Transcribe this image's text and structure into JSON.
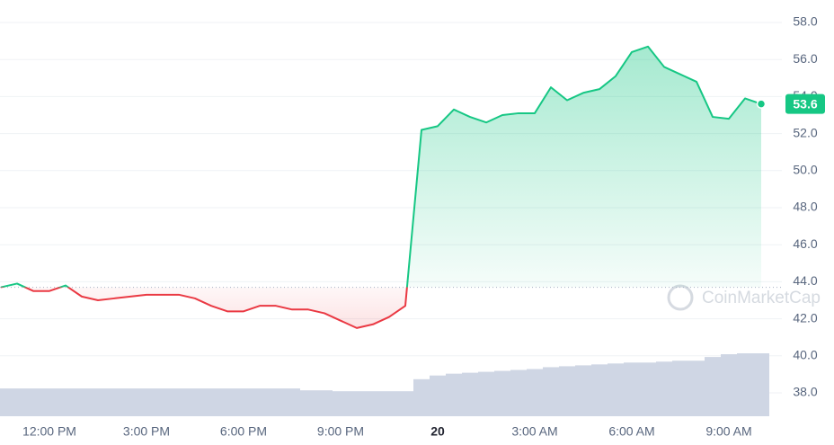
{
  "chart_data": {
    "type": "line",
    "values": [
      43.7,
      43.9,
      43.5,
      43.5,
      43.8,
      43.2,
      43.0,
      43.1,
      43.2,
      43.3,
      43.3,
      43.3,
      43.1,
      42.7,
      42.4,
      42.4,
      42.7,
      42.7,
      42.5,
      42.5,
      42.3,
      41.9,
      41.5,
      41.7,
      42.1,
      42.7,
      52.2,
      52.4,
      53.3,
      52.9,
      52.6,
      53.0,
      53.1,
      53.1,
      54.5,
      53.8,
      54.2,
      54.4,
      55.1,
      56.4,
      56.7,
      55.6,
      55.2,
      54.8,
      52.9,
      52.8,
      53.9,
      53.6
    ],
    "up_color": "#16c784",
    "down_color": "#ea3943",
    "baseline": 43.7,
    "volume": {
      "color": "#cfd6e4",
      "values": [
        30,
        30,
        30,
        30,
        30,
        30,
        30,
        30,
        30,
        30,
        30,
        30,
        30,
        30,
        30,
        30,
        30,
        30,
        30,
        28,
        28,
        27,
        27,
        27,
        27,
        27,
        40,
        44,
        46,
        47,
        48,
        49,
        50,
        51,
        53,
        54,
        55,
        56,
        57,
        58,
        58,
        59,
        60,
        60,
        64,
        67,
        68,
        68
      ]
    },
    "ylim": [
      38,
      58
    ],
    "yticks": [
      {
        "value": 38,
        "label": "38.0"
      },
      {
        "value": 40,
        "label": "40.0"
      },
      {
        "value": 42,
        "label": "42.0"
      },
      {
        "value": 44,
        "label": "44.0"
      },
      {
        "value": 46,
        "label": "46.0"
      },
      {
        "value": 48,
        "label": "48.0"
      },
      {
        "value": 50,
        "label": "50.0"
      },
      {
        "value": 52,
        "label": "52.0"
      },
      {
        "value": 54,
        "label": "54.0"
      },
      {
        "value": 56,
        "label": "56.0"
      },
      {
        "value": 58,
        "label": "58.0"
      }
    ],
    "xticks": [
      {
        "value": 3,
        "label": "12:00 PM"
      },
      {
        "value": 9,
        "label": "3:00 PM"
      },
      {
        "value": 15,
        "label": "6:00 PM"
      },
      {
        "value": 21,
        "label": "9:00 PM"
      },
      {
        "value": 27,
        "label": "20"
      },
      {
        "value": 33,
        "label": "3:00 AM"
      },
      {
        "value": 39,
        "label": "6:00 AM"
      },
      {
        "value": 45,
        "label": "9:00 AM"
      }
    ],
    "grid": true,
    "watermark": "CoinMarketCap"
  }
}
